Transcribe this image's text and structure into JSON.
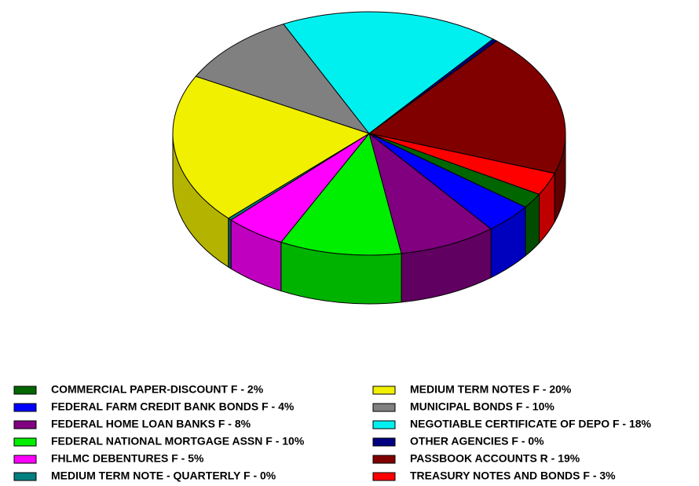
{
  "chart_data": {
    "type": "pie3d",
    "series": [
      {
        "name": "COMMERCIAL PAPER-DISCOUNT F - 2%",
        "color": "#006600",
        "values": [
          2
        ]
      },
      {
        "name": "FEDERAL FARM CREDIT BANK BONDS F - 4%",
        "color": "#0000ff",
        "values": [
          4
        ]
      },
      {
        "name": "FEDERAL HOME LOAN BANKS F - 8%",
        "color": "#800080",
        "values": [
          8
        ]
      },
      {
        "name": "FEDERAL NATIONAL MORTGAGE ASSN F - 10%",
        "color": "#00ee00",
        "values": [
          10
        ]
      },
      {
        "name": "FHLMC DEBENTURES F - 5%",
        "color": "#ff00ff",
        "values": [
          5
        ]
      },
      {
        "name": "MEDIUM TERM NOTE - QUARTERLY F - 0%",
        "color": "#008080",
        "values": [
          0.3
        ]
      },
      {
        "name": "MEDIUM TERM NOTES F - 20%",
        "color": "#f0f000",
        "values": [
          20
        ]
      },
      {
        "name": "MUNICIPAL BONDS F - 10%",
        "color": "#808080",
        "values": [
          10
        ]
      },
      {
        "name": "NEGOTIABLE CERTIFICATE OF DEPO F - 18%",
        "color": "#00f0f0",
        "values": [
          18
        ]
      },
      {
        "name": "OTHER AGENCIES F - 0%",
        "color": "#000080",
        "values": [
          0.4
        ]
      },
      {
        "name": "PASSBOOK ACCOUNTS R - 19%",
        "color": "#800000",
        "values": [
          19
        ]
      },
      {
        "name": "TREASURY NOTES AND BONDS F - 3%",
        "color": "#ff0000",
        "values": [
          3
        ]
      }
    ]
  }
}
